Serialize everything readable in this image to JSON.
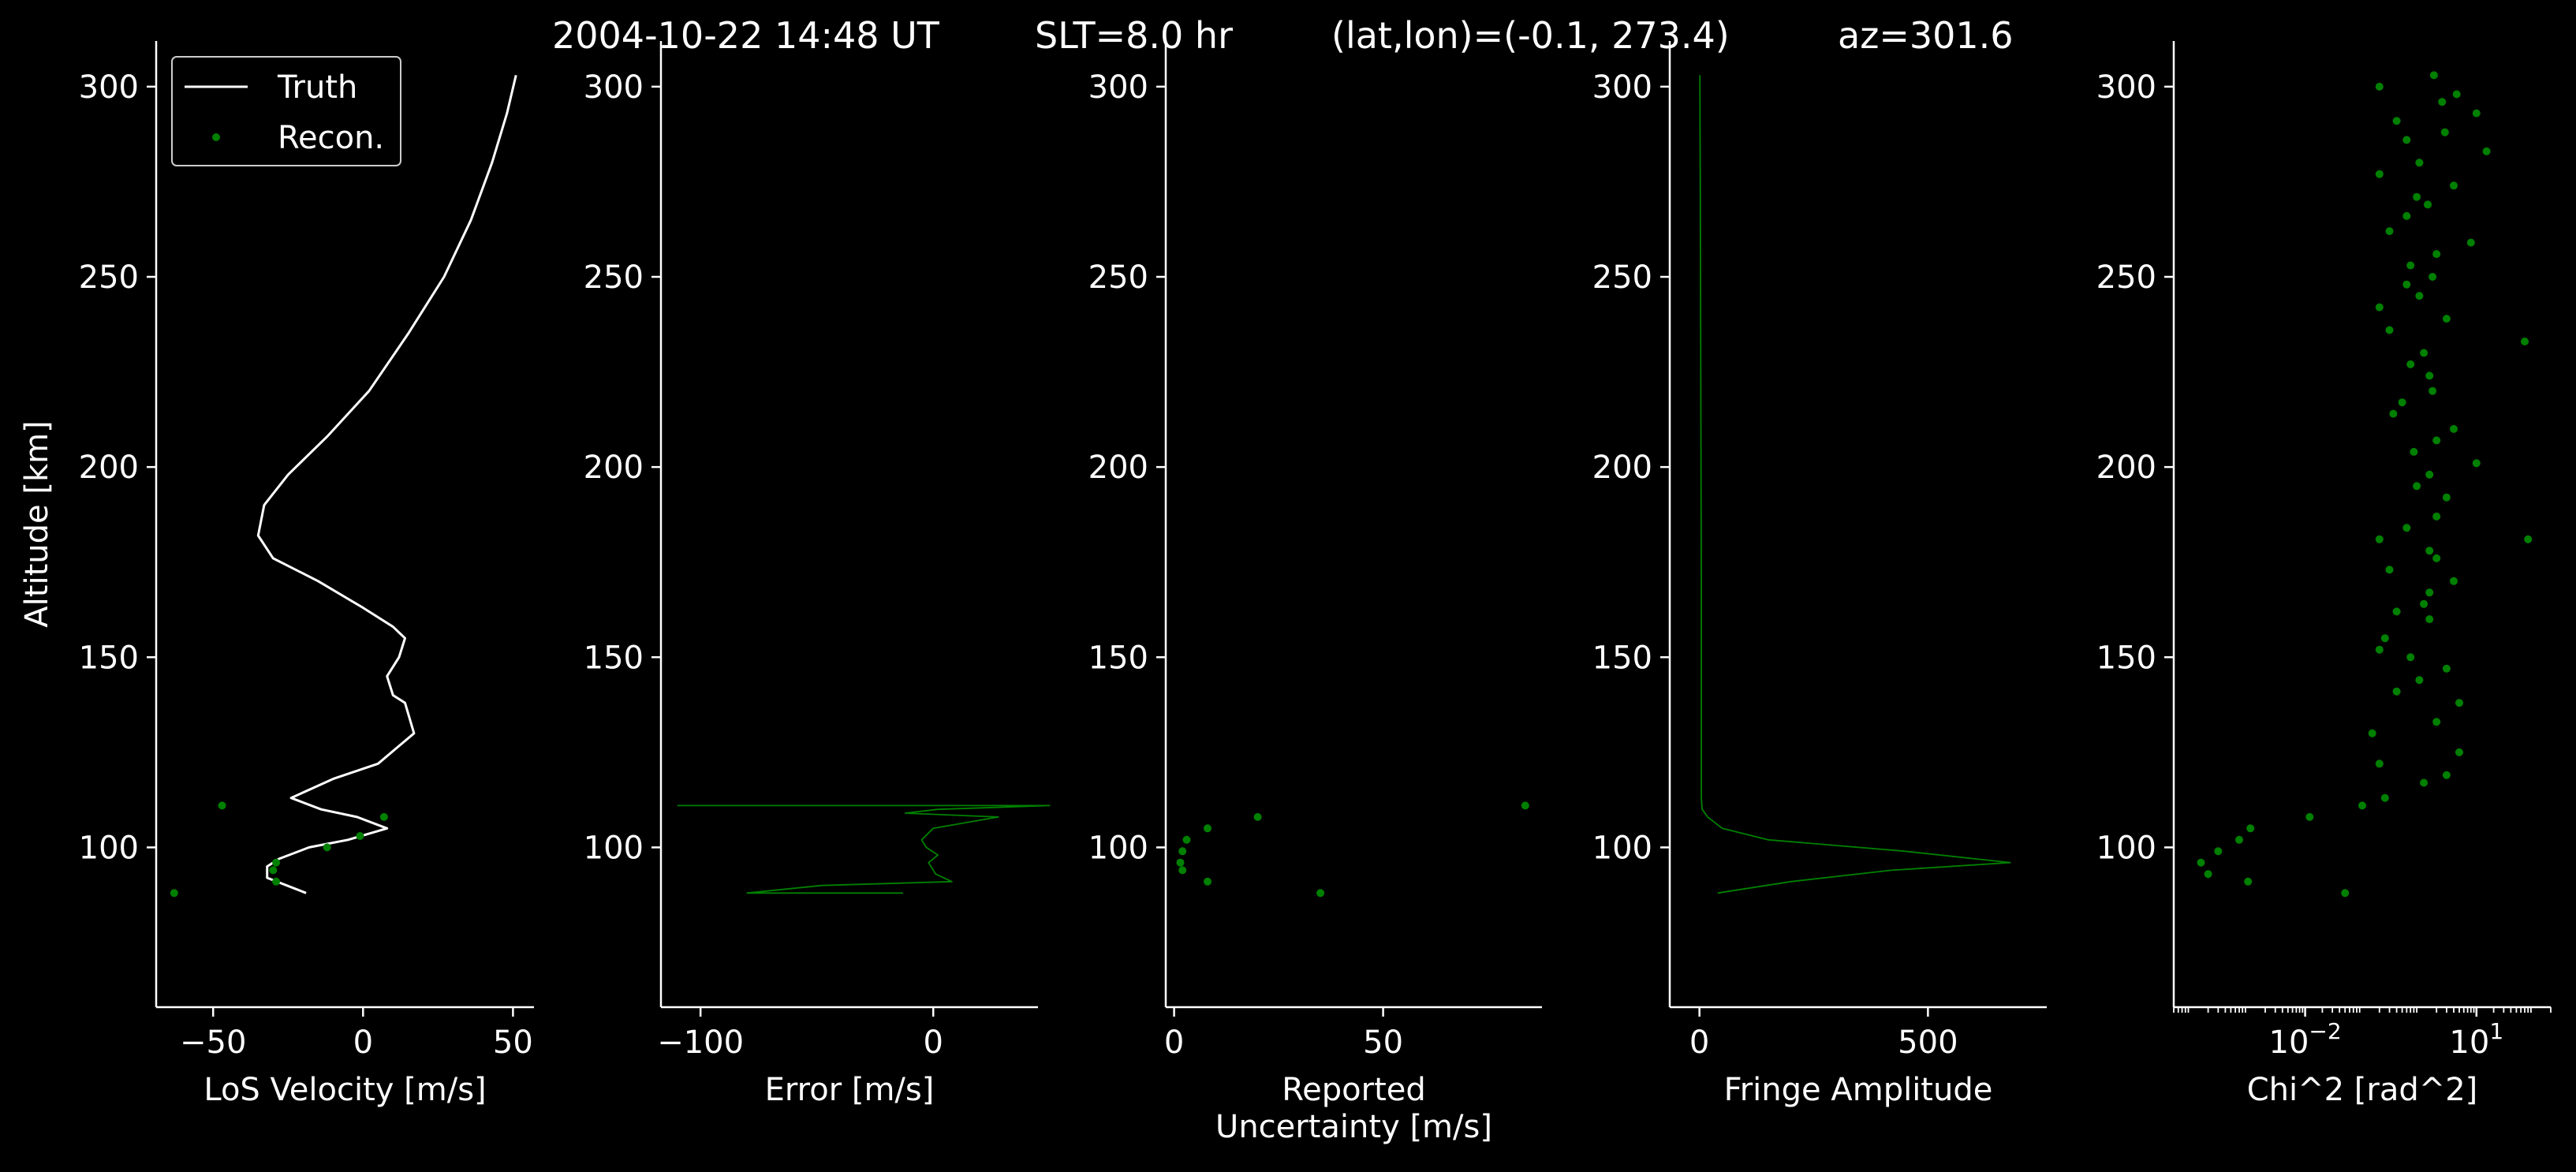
{
  "figure": {
    "title_parts": [
      "2004-10-22 14:48 UT",
      "SLT=8.0 hr",
      "(lat,lon)=(-0.1, 273.4)",
      "az=301.6"
    ],
    "colors": {
      "background": "#000000",
      "axes": "#ffffff",
      "truth": "#ffffff",
      "recon": "#008000"
    }
  },
  "chart_data": [
    {
      "type": "line",
      "xlabel": "LoS Velocity [m/s]",
      "ylabel": "Altitude [km]",
      "xlim": [
        -69,
        57
      ],
      "ylim": [
        58,
        312
      ],
      "xticks": [
        -50,
        0,
        50
      ],
      "xtick_labels": [
        "−50",
        "0",
        "50"
      ],
      "yticks": [
        100,
        150,
        200,
        250,
        300
      ],
      "ytick_labels": [
        "100",
        "150",
        "200",
        "250",
        "300"
      ],
      "legend": {
        "placement": "top-left",
        "entries": [
          "Truth",
          "Recon."
        ]
      },
      "series": [
        {
          "name": "Truth",
          "style": "line",
          "x": [
            -19,
            -32,
            -32,
            -28,
            -18,
            -5,
            8,
            -2,
            -14,
            -24,
            -10,
            5,
            17,
            14,
            10,
            8,
            12,
            14,
            10,
            0,
            -15,
            -30,
            -35,
            -33,
            -25,
            -12,
            2,
            15,
            27,
            36,
            43,
            48,
            51
          ],
          "y": [
            88,
            92,
            95,
            97,
            100,
            102,
            105,
            108,
            110,
            113,
            118,
            122,
            130,
            138,
            140,
            145,
            150,
            155,
            158,
            163,
            170,
            176,
            182,
            190,
            198,
            208,
            220,
            235,
            250,
            265,
            280,
            293,
            303
          ]
        },
        {
          "name": "Recon.",
          "style": "points",
          "x": [
            -63,
            -29,
            -30,
            -29,
            -12,
            -1,
            7,
            -47
          ],
          "y": [
            88,
            91,
            94,
            96,
            100,
            103,
            108,
            111
          ]
        }
      ]
    },
    {
      "type": "line",
      "xlabel": "Error [m/s]",
      "xlim": [
        -117,
        45
      ],
      "ylim": [
        58,
        312
      ],
      "xticks": [
        -100,
        0
      ],
      "xtick_labels": [
        "−100",
        "0"
      ],
      "yticks": [
        100,
        150,
        200,
        250,
        300
      ],
      "ytick_labels": [
        "100",
        "150",
        "200",
        "250",
        "300"
      ],
      "series": [
        {
          "name": "",
          "style": "line",
          "x": [
            -13,
            -80,
            -48,
            8,
            1,
            -2,
            2,
            -3,
            -5,
            0,
            28,
            -12,
            2,
            50,
            -110
          ],
          "y": [
            88,
            88,
            90,
            91,
            93,
            96,
            98,
            100,
            102,
            105,
            108,
            109,
            110,
            111,
            111
          ]
        }
      ]
    },
    {
      "type": "scatter",
      "xlabel": "Reported Uncertainty [m/s]",
      "xlim": [
        -2,
        88
      ],
      "ylim": [
        58,
        312
      ],
      "xticks": [
        0,
        50
      ],
      "xtick_labels": [
        "0",
        "50"
      ],
      "yticks": [
        100,
        150,
        200,
        250,
        300
      ],
      "ytick_labels": [
        "100",
        "150",
        "200",
        "250",
        "300"
      ],
      "series": [
        {
          "name": "",
          "style": "points",
          "x": [
            35,
            8,
            2,
            1.5,
            2,
            3,
            8,
            20,
            84
          ],
          "y": [
            88,
            91,
            94,
            96,
            99,
            102,
            105,
            108,
            111
          ]
        }
      ]
    },
    {
      "type": "line",
      "xlabel": "Fringe Amplitude",
      "xlim": [
        -65,
        760
      ],
      "ylim": [
        58,
        312
      ],
      "xticks": [
        0,
        500
      ],
      "xtick_labels": [
        "0",
        "500"
      ],
      "yticks": [
        100,
        150,
        200,
        250,
        300
      ],
      "ytick_labels": [
        "100",
        "150",
        "200",
        "250",
        "300"
      ],
      "series": [
        {
          "name": "",
          "style": "line",
          "x": [
            40,
            200,
            420,
            680,
            450,
            150,
            50,
            18,
            6,
            4,
            4,
            4,
            3,
            2,
            1
          ],
          "y": [
            88,
            91,
            94,
            96,
            99,
            102,
            105,
            108,
            110,
            113,
            130,
            170,
            220,
            270,
            303
          ]
        }
      ]
    },
    {
      "type": "scatter",
      "xlabel": "Chi^2 [rad^2]",
      "xscale": "log",
      "xlim": [
        5e-05,
        200
      ],
      "ylim": [
        58,
        312
      ],
      "xticks": [
        0.01,
        10
      ],
      "xtick_labels": [
        "10^−2",
        "10^1"
      ],
      "yticks": [
        100,
        150,
        200,
        250,
        300
      ],
      "ytick_labels": [
        "100",
        "150",
        "200",
        "250",
        "300"
      ],
      "series": [
        {
          "name": "",
          "style": "points",
          "x": [
            0.05,
            0.001,
            0.0002,
            0.00015,
            0.0003,
            0.0007,
            0.0011,
            0.012,
            0.1,
            0.25,
            1.2,
            3,
            0.2,
            5,
            0.15,
            2,
            5,
            0.4,
            1,
            3,
            0.7,
            0.2,
            0.25,
            1.5,
            0.4,
            1.2,
            1.5,
            4,
            0.3,
            2,
            1.5,
            0.2,
            80,
            0.6,
            2,
            3,
            0.9,
            1.5,
            10,
            0.8,
            2,
            4,
            0.35,
            0.5,
            1.7,
            1.5,
            0.7,
            1.2,
            70,
            0.3,
            3,
            0.2,
            1,
            0.6,
            1.7,
            0.7,
            2,
            8,
            0.3,
            0.6,
            1.4,
            0.9,
            4,
            0.2,
            1,
            15,
            0.6,
            2.8,
            0.4,
            10,
            2.5,
            4.5,
            0.2,
            1.8
          ],
          "y": [
            88,
            91,
            93,
            96,
            99,
            102,
            105,
            108,
            111,
            113,
            117,
            119,
            122,
            125,
            130,
            133,
            138,
            141,
            144,
            147,
            150,
            152,
            155,
            160,
            162,
            164,
            167,
            170,
            173,
            176,
            178,
            181,
            181,
            184,
            187,
            192,
            195,
            198,
            201,
            204,
            207,
            210,
            214,
            217,
            220,
            224,
            227,
            230,
            233,
            236,
            239,
            242,
            245,
            248,
            250,
            253,
            256,
            259,
            262,
            266,
            269,
            271,
            274,
            277,
            280,
            283,
            286,
            288,
            291,
            293,
            296,
            298,
            300,
            303
          ]
        }
      ]
    }
  ]
}
